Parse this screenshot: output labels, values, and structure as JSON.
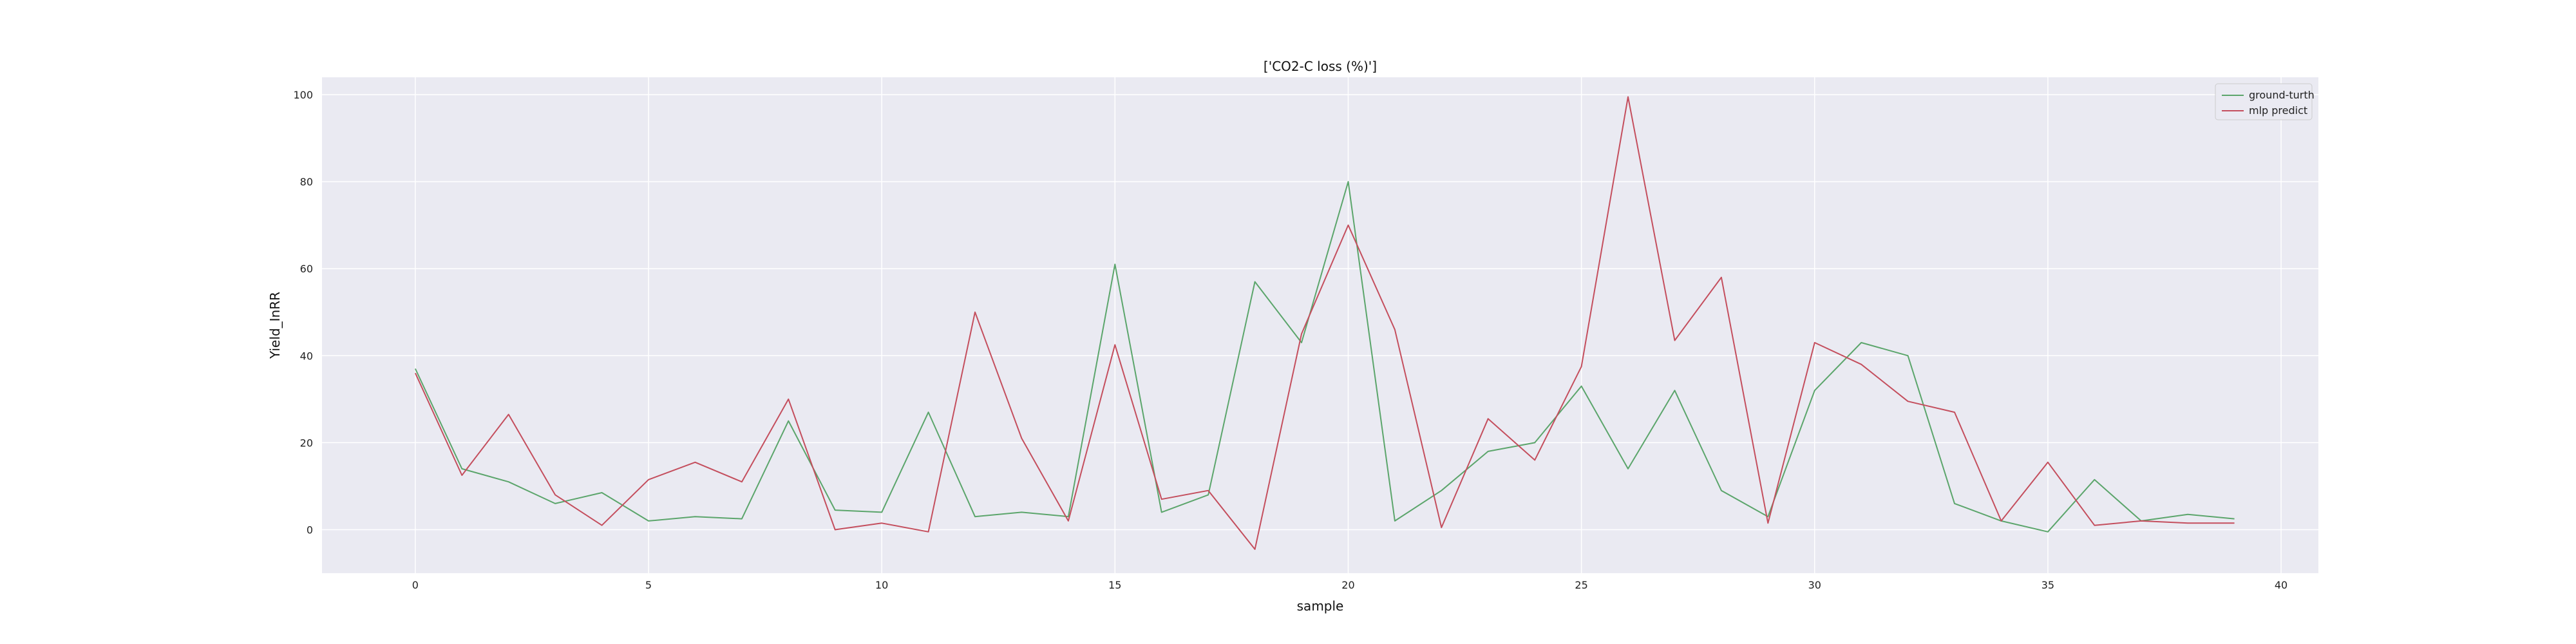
{
  "chart_data": {
    "type": "line",
    "title": "['CO2-C loss (%)']",
    "xlabel": "sample",
    "ylabel": "Yield_InRR",
    "xlim": [
      -2,
      40.8
    ],
    "ylim": [
      -10,
      104
    ],
    "xticks": [
      0,
      5,
      10,
      15,
      20,
      25,
      30,
      35,
      40
    ],
    "yticks": [
      0,
      20,
      40,
      60,
      80,
      100
    ],
    "grid": true,
    "legend_position": "top-right",
    "x": [
      0,
      1,
      2,
      3,
      4,
      5,
      6,
      7,
      8,
      9,
      10,
      11,
      12,
      13,
      14,
      15,
      16,
      17,
      18,
      19,
      20,
      21,
      22,
      23,
      24,
      25,
      26,
      27,
      28,
      29,
      30,
      31,
      32,
      33,
      34,
      35,
      36,
      37,
      38,
      39
    ],
    "series": [
      {
        "name": "ground-turth",
        "color": "#5ba56b",
        "values": [
          37,
          14,
          11,
          6,
          8.5,
          2,
          3,
          2.5,
          25,
          4.5,
          4,
          27,
          3,
          4,
          3,
          61,
          4,
          8,
          57,
          43,
          80,
          2,
          9,
          18,
          20,
          33,
          14,
          32,
          9,
          3,
          32,
          43,
          40,
          6,
          2,
          -0.5,
          11.5,
          2,
          3.5,
          2.5
        ]
      },
      {
        "name": "mlp predict",
        "color": "#c44e5d",
        "values": [
          36,
          12.5,
          26.5,
          8,
          1,
          11.5,
          15.5,
          11,
          30,
          0,
          1.5,
          -0.5,
          50,
          21,
          2,
          42.5,
          7,
          9,
          -4.5,
          45,
          70,
          46,
          0.5,
          25.5,
          16,
          37.5,
          99.5,
          43.5,
          58,
          1.5,
          43,
          38,
          29.5,
          27,
          2,
          15.5,
          1,
          2,
          1.5,
          1.5
        ]
      }
    ]
  }
}
